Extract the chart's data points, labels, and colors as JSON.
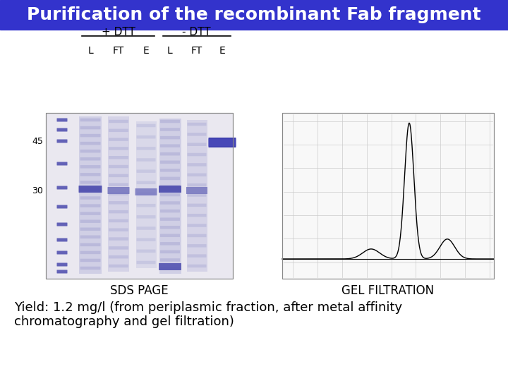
{
  "title": "Purification of the recombinant Fab fragment",
  "title_bg_color": "#3333CC",
  "title_text_color": "#FFFFFF",
  "title_fontsize": 18,
  "bg_color": "#FFFFFF",
  "sds_label": "SDS PAGE",
  "gel_label": "GEL FILTRATION",
  "label_fontsize": 12,
  "dtt_plus_label": "+ DTT",
  "dtt_minus_label": "- DTT",
  "lane_labels": [
    "L",
    "FT",
    "E",
    "L",
    "FT",
    "E"
  ],
  "marker_labels": [
    "45",
    "30"
  ],
  "yield_text_line1": "Yield: 1.2 mg/l (from periplasmic fraction, after metal affinity",
  "yield_text_line2": "chromatography and gel filtration)",
  "yield_fontsize": 13,
  "gel_bg": "#E8E8F4",
  "band_color_dark": "#5050B0",
  "band_color_medium": "#7878C0",
  "band_color_light": "#A0A0D0"
}
